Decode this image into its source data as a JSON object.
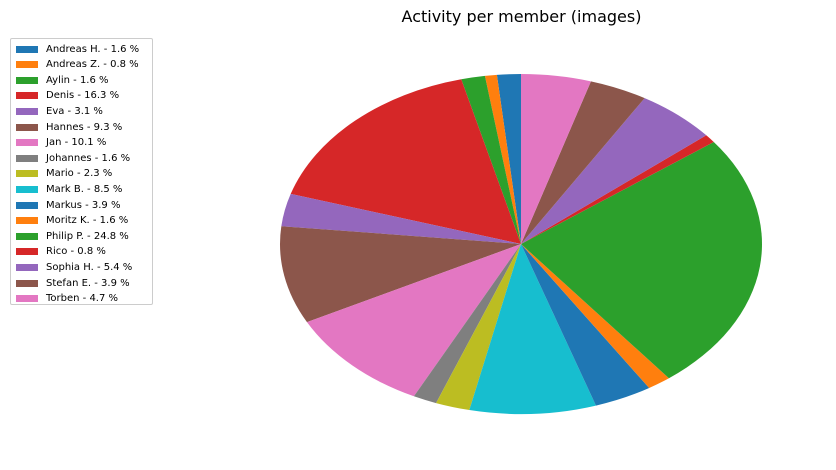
{
  "chart_data": {
    "type": "pie",
    "title": "Activity per member (images)",
    "start_angle_deg": 90,
    "direction": "counterclockwise",
    "slices": [
      {
        "label": "Andreas H. - 1.6 %",
        "value": 1.6,
        "color": "#1f77b4"
      },
      {
        "label": "Andreas Z. - 0.8 %",
        "value": 0.8,
        "color": "#ff7f0e"
      },
      {
        "label": "Aylin - 1.6 %",
        "value": 1.6,
        "color": "#2ca02c"
      },
      {
        "label": "Denis - 16.3 %",
        "value": 16.3,
        "color": "#d62728"
      },
      {
        "label": "Eva - 3.1 %",
        "value": 3.1,
        "color": "#9467bd"
      },
      {
        "label": "Hannes - 9.3 %",
        "value": 9.3,
        "color": "#8c564b"
      },
      {
        "label": "Jan - 10.1 %",
        "value": 10.1,
        "color": "#e377c2"
      },
      {
        "label": "Johannes - 1.6 %",
        "value": 1.6,
        "color": "#7f7f7f"
      },
      {
        "label": "Mario - 2.3 %",
        "value": 2.3,
        "color": "#bcbd22"
      },
      {
        "label": "Mark B. - 8.5 %",
        "value": 8.5,
        "color": "#17becf"
      },
      {
        "label": "Markus - 3.9 %",
        "value": 3.9,
        "color": "#1f77b4"
      },
      {
        "label": "Moritz K. - 1.6 %",
        "value": 1.6,
        "color": "#ff7f0e"
      },
      {
        "label": "Philip P. - 24.8 %",
        "value": 24.8,
        "color": "#2ca02c"
      },
      {
        "label": "Rico - 0.8 %",
        "value": 0.8,
        "color": "#d62728"
      },
      {
        "label": "Sophia H. - 5.4 %",
        "value": 5.4,
        "color": "#9467bd"
      },
      {
        "label": "Stefan E. - 3.9 %",
        "value": 3.9,
        "color": "#8c564b"
      },
      {
        "label": "Torben - 4.7 %",
        "value": 4.7,
        "color": "#e377c2"
      }
    ],
    "legend_position": "top-left"
  }
}
